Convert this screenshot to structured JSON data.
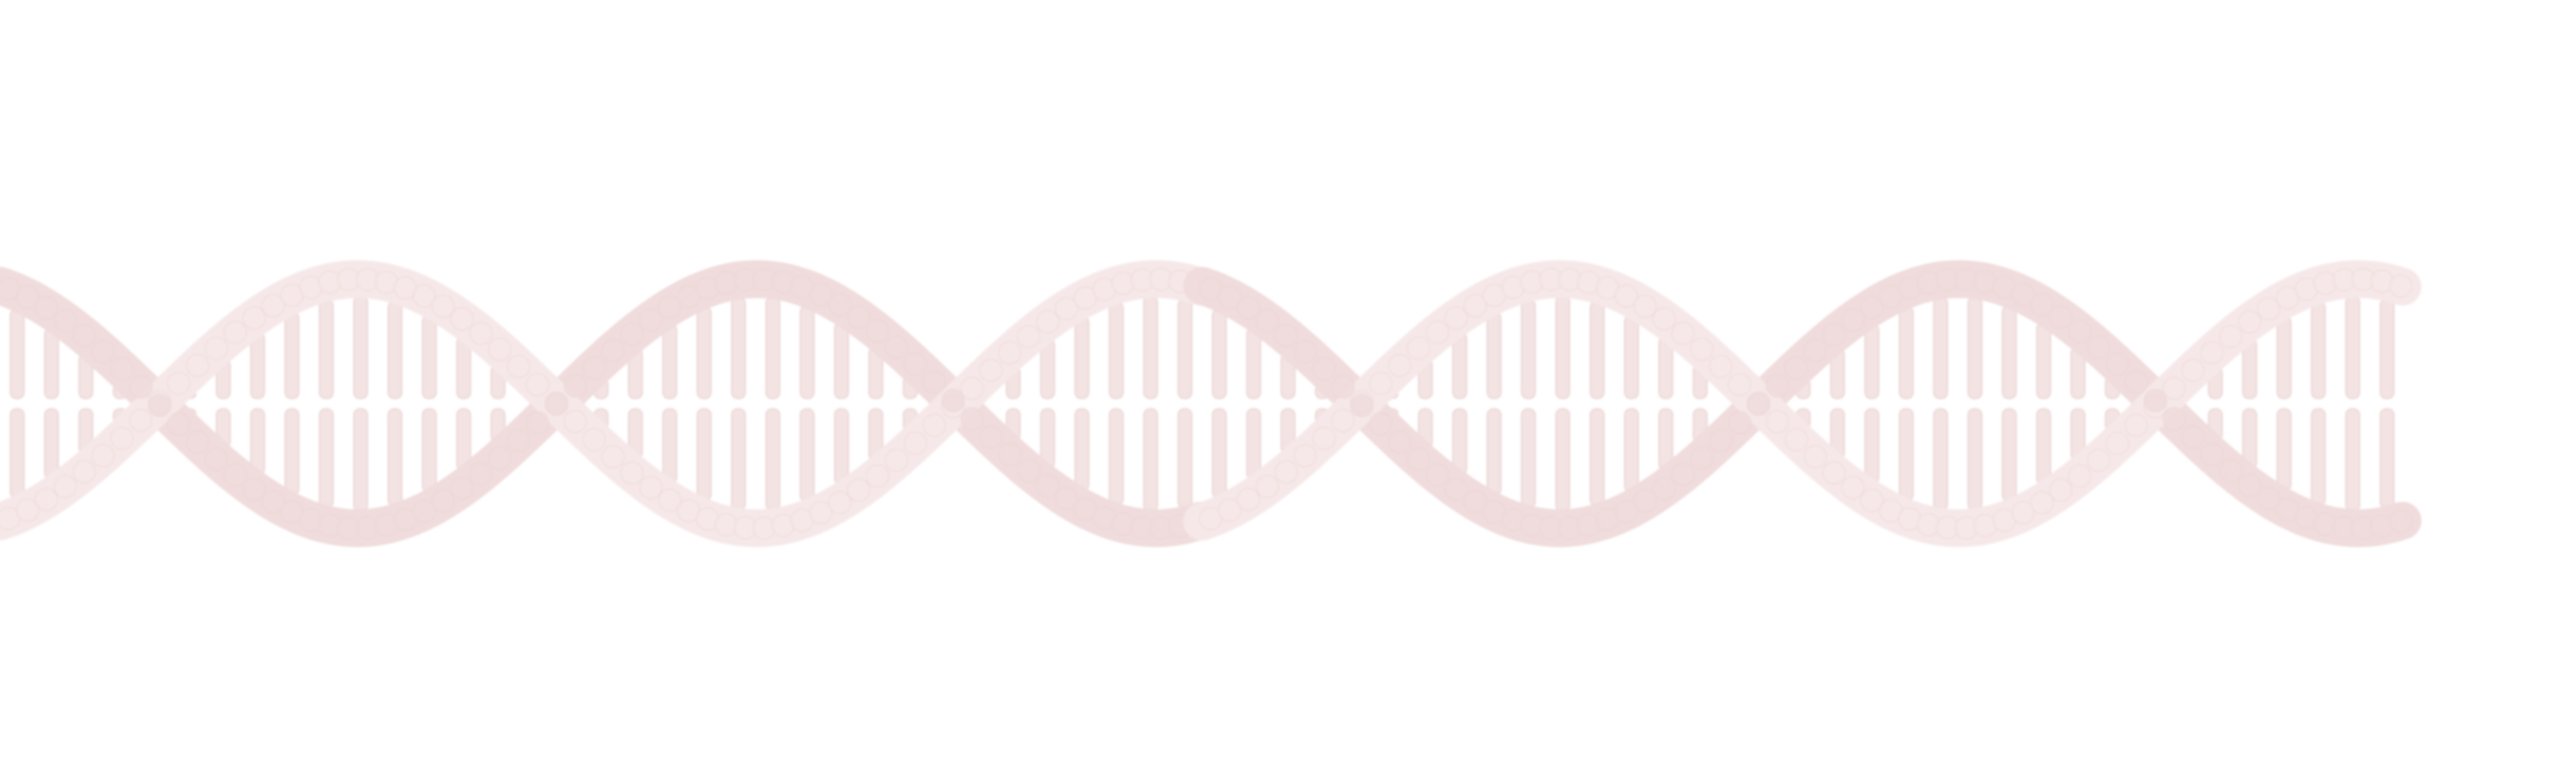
{
  "image": {
    "background_color": "#ffffff",
    "subject": "dna-double-helix-banner",
    "helix_tile_count": 2,
    "colors": {
      "strand": "#f6e8e8",
      "strand_shade": "#f0dcdc",
      "base_pair": "#f3e3e3",
      "base_pair_edge": "#ecd6d6"
    }
  }
}
